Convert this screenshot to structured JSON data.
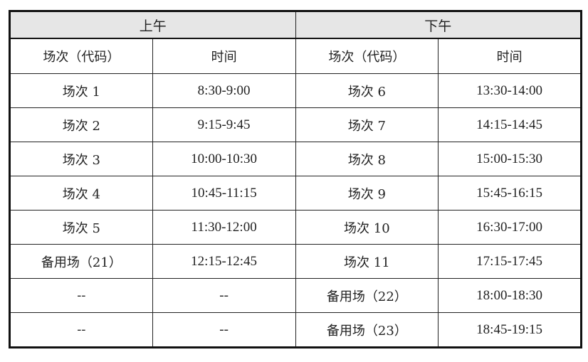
{
  "periods": {
    "morning": "上午",
    "afternoon": "下午"
  },
  "columns": {
    "session": "场次（代码）",
    "time": "时间"
  },
  "rows": [
    {
      "am_session": "场次 1",
      "am_time": "8:30-9:00",
      "pm_session": "场次 6",
      "pm_time": "13:30-14:00"
    },
    {
      "am_session": "场次 2",
      "am_time": "9:15-9:45",
      "pm_session": "场次 7",
      "pm_time": "14:15-14:45"
    },
    {
      "am_session": "场次 3",
      "am_time": "10:00-10:30",
      "pm_session": "场次 8",
      "pm_time": "15:00-15:30"
    },
    {
      "am_session": "场次 4",
      "am_time": "10:45-11:15",
      "pm_session": "场次 9",
      "pm_time": "15:45-16:15"
    },
    {
      "am_session": "场次 5",
      "am_time": "11:30-12:00",
      "pm_session": "场次 10",
      "pm_time": "16:30-17:00"
    },
    {
      "am_session": "备用场（21）",
      "am_time": "12:15-12:45",
      "pm_session": "场次 11",
      "pm_time": "17:15-17:45"
    },
    {
      "am_session": "--",
      "am_time": "--",
      "pm_session": "备用场（22）",
      "pm_time": "18:00-18:30"
    },
    {
      "am_session": "--",
      "am_time": "--",
      "pm_session": "备用场（23）",
      "pm_time": "18:45-19:15"
    }
  ]
}
